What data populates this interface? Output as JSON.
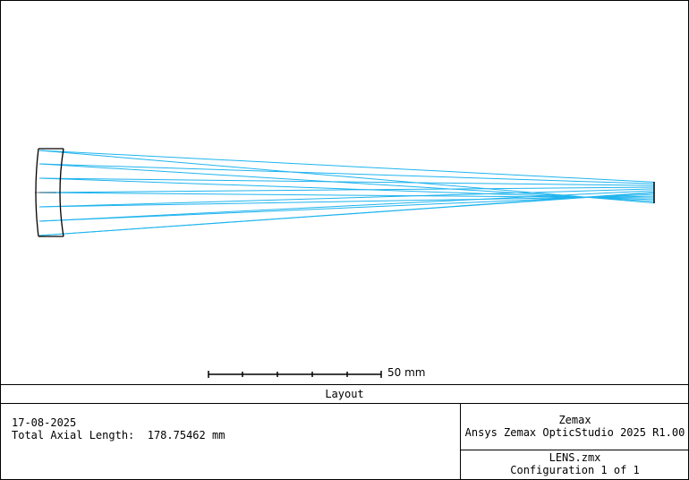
{
  "layout": {
    "title": "Layout",
    "date": "17-08-2025",
    "axial_length_label": "Total Axial Length:",
    "axial_length_value": "178.75462 mm",
    "vendor": "Zemax",
    "software": "Ansys Zemax OpticStudio 2025 R1.00",
    "file": "LENS.zmx",
    "configuration": "Configuration 1 of 1",
    "scale_label": "50 mm"
  },
  "colors": {
    "ray": "#1fb4ee",
    "lens": "#000000",
    "border": "#000000"
  },
  "icons": {
    "lens": "lens-element-icon",
    "image_plane": "image-plane-icon",
    "scale": "scale-bar-icon"
  }
}
